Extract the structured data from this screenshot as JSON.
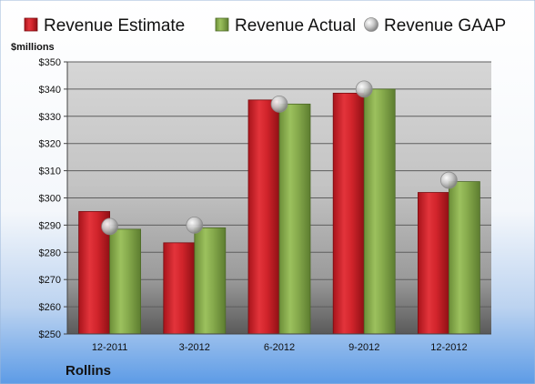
{
  "chart_data": {
    "type": "bar",
    "company": "Rollins",
    "unit_label": "$millions",
    "categories": [
      "12-2011",
      "3-2012",
      "6-2012",
      "9-2012",
      "12-2012"
    ],
    "series": [
      {
        "name": "Revenue Estimate",
        "kind": "bar",
        "color": "#d9232b",
        "values": [
          295,
          283.5,
          336,
          338.5,
          302
        ]
      },
      {
        "name": "Revenue Actual",
        "kind": "bar",
        "color": "#8ab04f",
        "values": [
          288.5,
          289,
          334.5,
          340,
          306
        ]
      },
      {
        "name": "Revenue GAAP",
        "kind": "marker",
        "color": "#b8b8b8",
        "values": [
          289.5,
          290,
          334.5,
          340,
          306.5
        ]
      }
    ],
    "ylim": [
      250,
      350
    ],
    "yticks": [
      "$250",
      "$260",
      "$270",
      "$280",
      "$290",
      "$300",
      "$310",
      "$320",
      "$330",
      "$340",
      "$350"
    ],
    "ytick_values": [
      250,
      260,
      270,
      280,
      290,
      300,
      310,
      320,
      330,
      340,
      350
    ],
    "grid": true,
    "legend_position": "top"
  }
}
